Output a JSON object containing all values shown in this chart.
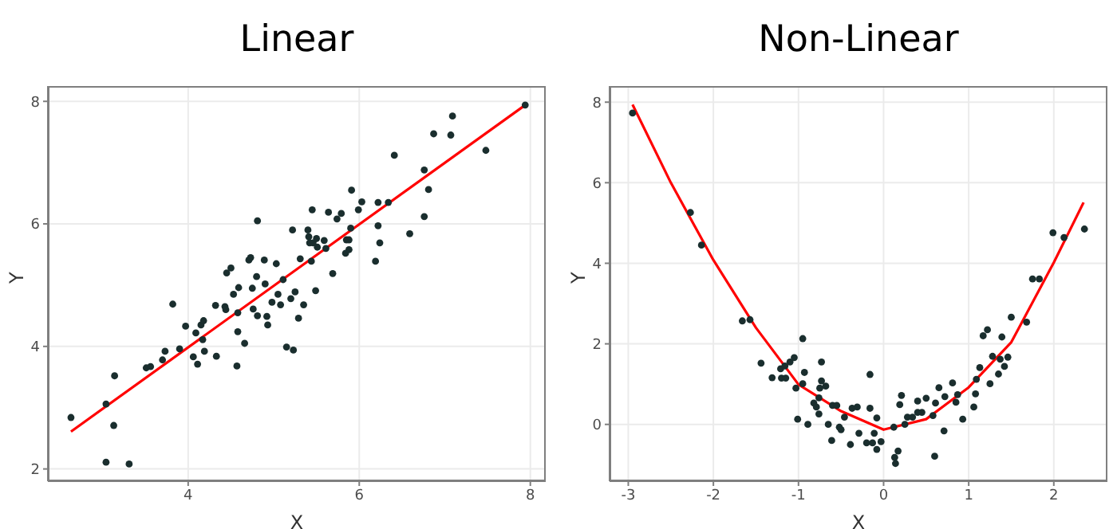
{
  "chart_data": [
    {
      "type": "scatter",
      "title": "Linear",
      "xlabel": "X",
      "ylabel": "Y",
      "xlim": [
        2.36,
        8.18
      ],
      "ylim": [
        1.8,
        8.25
      ],
      "xticks": [
        4,
        6,
        8
      ],
      "yticks": [
        2,
        4,
        6,
        8
      ],
      "grid": true,
      "series": [
        {
          "marker": "circle",
          "color": "#1a2e2e",
          "x": [
            2.63,
            3.04,
            3.14,
            3.13,
            3.04,
            3.31,
            3.51,
            3.56,
            3.7,
            3.73,
            3.9,
            3.82,
            3.97,
            4.06,
            4.09,
            4.11,
            4.15,
            4.18,
            4.17,
            4.19,
            4.33,
            4.32,
            4.43,
            4.44,
            4.45,
            4.5,
            4.53,
            4.57,
            4.58,
            4.58,
            4.59,
            4.66,
            4.71,
            4.73,
            4.75,
            4.76,
            4.8,
            4.81,
            4.81,
            4.89,
            4.9,
            4.92,
            4.93,
            4.98,
            5.03,
            5.05,
            5.08,
            5.11,
            5.15,
            5.2,
            5.23,
            5.22,
            5.25,
            5.29,
            5.31,
            5.35,
            5.4,
            5.41,
            5.42,
            5.44,
            5.45,
            5.46,
            5.49,
            5.5,
            5.51,
            5.59,
            5.61,
            5.64,
            5.69,
            5.74,
            5.79,
            5.84,
            5.85,
            5.88,
            5.88,
            5.9,
            5.91,
            5.99,
            6.03,
            6.19,
            6.22,
            6.22,
            6.24,
            6.34,
            6.41,
            6.59,
            6.76,
            6.76,
            6.81,
            6.87,
            7.07,
            7.09,
            7.48,
            7.94
          ],
          "values": [
            2.84,
            3.06,
            3.52,
            2.71,
            2.11,
            2.08,
            3.65,
            3.67,
            3.78,
            3.92,
            3.96,
            4.69,
            4.33,
            3.83,
            4.22,
            3.71,
            4.35,
            4.42,
            4.11,
            3.92,
            3.84,
            4.67,
            4.65,
            4.6,
            5.2,
            5.28,
            4.85,
            3.68,
            4.55,
            4.24,
            4.96,
            4.05,
            5.41,
            5.45,
            4.95,
            4.61,
            5.14,
            6.05,
            4.5,
            5.41,
            5.02,
            4.49,
            4.35,
            4.72,
            5.35,
            4.85,
            4.68,
            5.09,
            3.99,
            4.78,
            3.94,
            5.9,
            4.89,
            4.46,
            5.43,
            4.68,
            5.9,
            5.79,
            5.69,
            5.39,
            6.23,
            5.69,
            4.91,
            5.76,
            5.62,
            5.73,
            5.6,
            6.19,
            5.19,
            6.08,
            6.17,
            5.52,
            5.74,
            5.74,
            5.58,
            5.93,
            6.55,
            6.23,
            6.36,
            5.39,
            5.97,
            6.35,
            5.69,
            6.35,
            7.12,
            5.84,
            6.88,
            6.12,
            6.56,
            7.47,
            7.45,
            7.76,
            7.2,
            7.94
          ]
        },
        {
          "type": "line",
          "color": "#ff0000",
          "x": [
            2.63,
            7.94
          ],
          "values": [
            2.61,
            7.94
          ]
        }
      ]
    },
    {
      "type": "scatter",
      "title": "Non-Linear",
      "xlabel": "X",
      "ylabel": "Y",
      "xlim": [
        -3.22,
        2.63
      ],
      "ylim": [
        -1.41,
        8.4
      ],
      "xticks": [
        -3,
        -2,
        -1,
        0,
        1,
        2
      ],
      "yticks": [
        0,
        2,
        4,
        6,
        8
      ],
      "grid": true,
      "series": [
        {
          "marker": "circle",
          "color": "#1a2e2e",
          "x": [
            -2.95,
            -2.27,
            -2.14,
            -1.66,
            -1.57,
            -1.44,
            -1.31,
            -1.21,
            -1.2,
            -1.15,
            -1.16,
            -1.1,
            -1.05,
            -1.03,
            -1.01,
            -0.95,
            -0.95,
            -0.93,
            -0.89,
            -0.82,
            -0.79,
            -0.76,
            -0.76,
            -0.75,
            -0.73,
            -0.73,
            -0.68,
            -0.65,
            -0.61,
            -0.6,
            -0.55,
            -0.52,
            -0.5,
            -0.46,
            -0.39,
            -0.37,
            -0.31,
            -0.29,
            -0.2,
            -0.16,
            -0.16,
            -0.13,
            -0.11,
            -0.08,
            -0.08,
            -0.03,
            0.12,
            0.13,
            0.14,
            0.17,
            0.19,
            0.21,
            0.25,
            0.28,
            0.34,
            0.4,
            0.4,
            0.45,
            0.5,
            0.58,
            0.6,
            0.61,
            0.65,
            0.71,
            0.72,
            0.81,
            0.85,
            0.87,
            0.93,
            1.06,
            1.08,
            1.09,
            1.13,
            1.17,
            1.22,
            1.25,
            1.28,
            1.35,
            1.37,
            1.39,
            1.42,
            1.46,
            1.5,
            1.68,
            1.75,
            1.83,
            1.99,
            2.12,
            2.36
          ],
          "values": [
            7.73,
            5.26,
            4.45,
            2.57,
            2.6,
            1.52,
            1.16,
            1.38,
            1.15,
            1.15,
            1.45,
            1.55,
            1.66,
            0.9,
            0.13,
            2.13,
            1.01,
            1.29,
            0.0,
            0.53,
            0.43,
            0.26,
            0.66,
            0.9,
            1.08,
            1.55,
            0.95,
            0.0,
            -0.4,
            0.47,
            0.47,
            -0.07,
            -0.13,
            0.18,
            -0.5,
            0.4,
            0.43,
            -0.22,
            -0.46,
            1.24,
            0.4,
            -0.46,
            -0.22,
            0.16,
            -0.62,
            -0.43,
            -0.07,
            -0.82,
            -0.97,
            -0.66,
            0.49,
            0.72,
            0.0,
            0.18,
            0.18,
            0.58,
            0.3,
            0.3,
            0.65,
            0.22,
            -0.79,
            0.53,
            0.91,
            -0.16,
            0.69,
            1.03,
            0.55,
            0.74,
            0.13,
            0.43,
            0.76,
            1.12,
            1.41,
            2.2,
            2.35,
            1.01,
            1.69,
            1.25,
            1.62,
            2.17,
            1.44,
            1.67,
            2.66,
            2.54,
            3.61,
            3.61,
            4.76,
            4.64,
            4.85
          ]
        },
        {
          "type": "line",
          "color": "#ff0000",
          "x": [
            -2.95,
            -2.5,
            -2,
            -1.5,
            -1,
            -0.5,
            0,
            0.5,
            1,
            1.5,
            2,
            2.35
          ],
          "values": [
            7.94,
            6.0,
            4.08,
            2.4,
            0.99,
            0.33,
            -0.13,
            0.13,
            0.92,
            2.04,
            4.02,
            5.51
          ]
        }
      ]
    }
  ]
}
